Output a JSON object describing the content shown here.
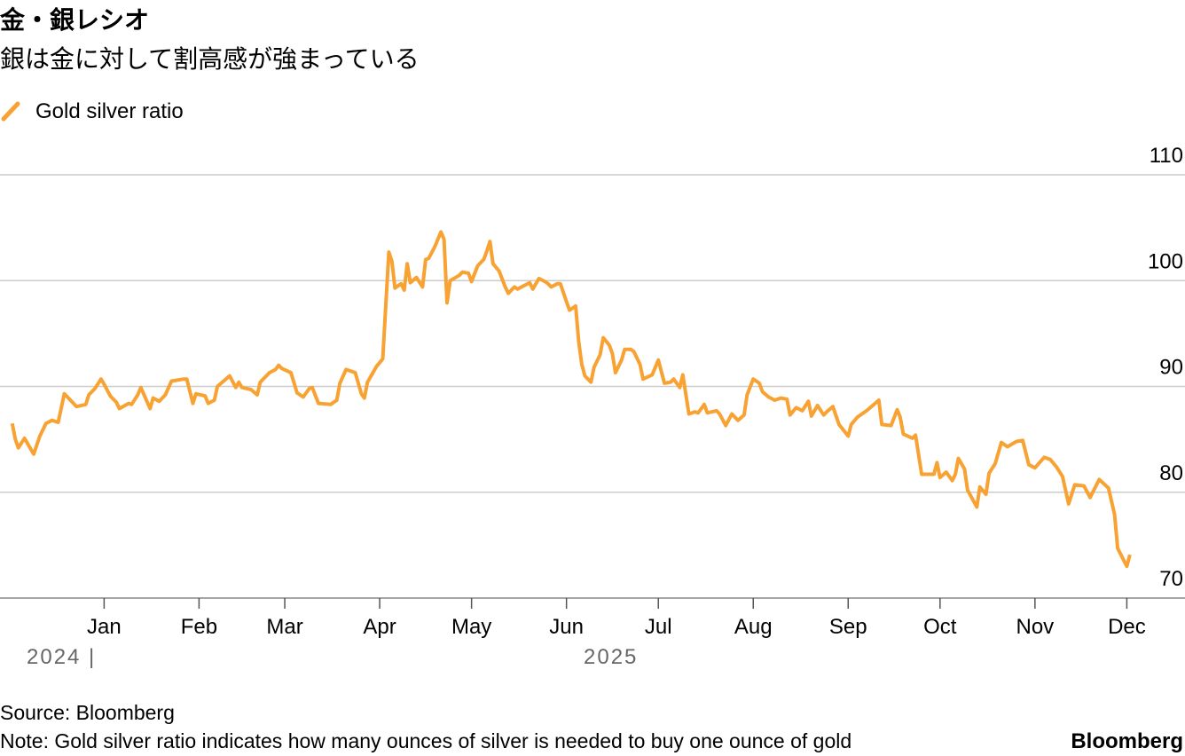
{
  "chart_data": {
    "type": "line",
    "title": "金・銀レシオ",
    "subtitle": "銀は金に対して割高感が強まっている",
    "source": "Source: Bloomberg",
    "note": "Note: Gold silver ratio indicates how many ounces of silver is needed to buy one ounce of gold",
    "brand": "Bloomberg",
    "year_labels": [
      "2024 |",
      "2025"
    ],
    "xlim": [
      -34,
      353
    ],
    "xticks": [
      {
        "value": 0,
        "label": "Jan"
      },
      {
        "value": 31,
        "label": "Feb"
      },
      {
        "value": 59,
        "label": "Mar"
      },
      {
        "value": 90,
        "label": "Apr"
      },
      {
        "value": 120,
        "label": "May"
      },
      {
        "value": 151,
        "label": "Jun"
      },
      {
        "value": 181,
        "label": "Jul"
      },
      {
        "value": 212,
        "label": "Aug"
      },
      {
        "value": 243,
        "label": "Sep"
      },
      {
        "value": 273,
        "label": "Oct"
      },
      {
        "value": 304,
        "label": "Nov"
      },
      {
        "value": 334,
        "label": "Dec"
      }
    ],
    "ylim": [
      70,
      110
    ],
    "yticks": [
      70,
      80,
      90,
      100,
      110
    ],
    "grid": true,
    "x": [
      -30,
      -29,
      -28,
      -26,
      -23,
      -21,
      -19,
      -17,
      -15,
      -13,
      -10,
      -9,
      -6,
      -5,
      -3,
      -1,
      0,
      2,
      4,
      5,
      8,
      9,
      11,
      12,
      15,
      16,
      18,
      20,
      22,
      26,
      27,
      29,
      30,
      33,
      34,
      36,
      37,
      41,
      43,
      44,
      45,
      48,
      50,
      51,
      54,
      56,
      57,
      58,
      61,
      63,
      65,
      67,
      68,
      70,
      74,
      76,
      77,
      79,
      82,
      84,
      85,
      86,
      89,
      91,
      93,
      94,
      95,
      97,
      98,
      99,
      100,
      102,
      104,
      105,
      106,
      108,
      110,
      111,
      112,
      113,
      116,
      117,
      119,
      120,
      122,
      124,
      125,
      126,
      127,
      129,
      131,
      132,
      134,
      135,
      137,
      139,
      140,
      142,
      144,
      145,
      146,
      148,
      149,
      151,
      152,
      154,
      155,
      156,
      157,
      159,
      160,
      162,
      163,
      165,
      166,
      167,
      169,
      170,
      172,
      173,
      175,
      176,
      179,
      180,
      181,
      183,
      185,
      186,
      188,
      189,
      191,
      193,
      194,
      196,
      197,
      200,
      201,
      203,
      205,
      207,
      209,
      210,
      212,
      214,
      215,
      217,
      219,
      221,
      223,
      224,
      226,
      228,
      230,
      231,
      233,
      235,
      236,
      238,
      240,
      243,
      244,
      246,
      249,
      251,
      253,
      254,
      257,
      259,
      260,
      261,
      264,
      265,
      267,
      271,
      272,
      273,
      275,
      277,
      278,
      279,
      281,
      282,
      285,
      286,
      288,
      289,
      291,
      293,
      295,
      298,
      300,
      302,
      304,
      307,
      309,
      311,
      313,
      315,
      317,
      320,
      322,
      325,
      328,
      330,
      331,
      334,
      335
    ],
    "series": [
      {
        "name": "Gold silver ratio",
        "color": "#f7a232",
        "values": [
          86.5,
          85,
          84.2,
          85.1,
          83.6,
          85.3,
          86.5,
          86.8,
          86.6,
          89.3,
          88.4,
          88.1,
          88.3,
          89.2,
          89.8,
          90.7,
          90.2,
          89.1,
          88.5,
          87.9,
          88.4,
          88.3,
          89.2,
          89.9,
          87.9,
          88.9,
          88.6,
          89.2,
          90.5,
          90.7,
          90.7,
          88.4,
          89.3,
          89.1,
          88.4,
          88.7,
          90,
          91,
          89.9,
          90.4,
          89.9,
          89.7,
          89.2,
          90.4,
          91.3,
          91.6,
          92,
          91.7,
          91.3,
          89.4,
          89,
          89.8,
          89.9,
          88.4,
          88.3,
          88.7,
          90.3,
          91.6,
          91.3,
          89.3,
          88.9,
          90.4,
          91.9,
          92.6,
          102.7,
          101.8,
          99.3,
          99.7,
          99.1,
          101.6,
          99.8,
          100.3,
          99.4,
          102,
          102.1,
          103.2,
          104.6,
          103.9,
          97.9,
          100,
          100.5,
          100.8,
          100.7,
          99.9,
          101.4,
          102,
          102.8,
          103.7,
          101.6,
          100.9,
          99.4,
          98.8,
          99.4,
          99.2,
          99.5,
          99.8,
          99.2,
          100.2,
          99.9,
          99.7,
          99.4,
          99.7,
          99.7,
          98,
          97.2,
          97.6,
          94.2,
          92.1,
          91,
          90.4,
          91.8,
          93,
          94.6,
          93.9,
          93.1,
          91.3,
          92.5,
          93.5,
          93.5,
          93.3,
          92.1,
          90.7,
          91.1,
          91.8,
          92.5,
          90.3,
          90.4,
          90.7,
          89.9,
          91.1,
          87.4,
          87.6,
          87.5,
          88.3,
          87.5,
          87.7,
          87.4,
          86.3,
          87.4,
          86.8,
          87.3,
          89.2,
          90.7,
          90.3,
          89.5,
          89,
          88.7,
          88.9,
          88.8,
          87.3,
          88,
          87.7,
          88.6,
          87.2,
          88.2,
          87.3,
          87.6,
          88.1,
          86.4,
          85.3,
          86.4,
          87.1,
          87.7,
          88.2,
          88.7,
          86.4,
          86.3,
          87.8,
          87.1,
          85.5,
          85.1,
          85.4,
          81.7,
          81.7,
          82.8,
          81.4,
          81.9,
          81.1,
          81.7,
          83.2,
          82.2,
          80.2,
          78.6,
          80.5,
          79.8,
          81.8,
          82.7,
          84.7,
          84.3,
          84.8,
          84.9,
          82.6,
          82.3,
          83.3,
          83.1,
          82.4,
          81.5,
          78.9,
          80.7,
          80.6,
          79.5,
          81.2,
          80.4,
          77.9,
          74.7,
          73,
          74.1
        ]
      }
    ]
  }
}
